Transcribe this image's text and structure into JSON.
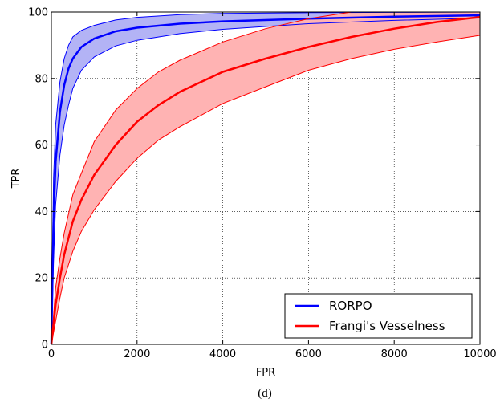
{
  "chart_data": {
    "type": "line",
    "xlabel": "FPR",
    "ylabel": "TPR",
    "xlim": [
      0,
      10000
    ],
    "ylim": [
      0,
      100
    ],
    "xticks": [
      "0",
      "2000",
      "4000",
      "6000",
      "8000",
      "10000"
    ],
    "yticks": [
      "0",
      "20",
      "40",
      "60",
      "80",
      "100"
    ],
    "grid": true,
    "legend_position": "bottom-right",
    "caption": "(d)",
    "series": [
      {
        "name": "RORPO",
        "color": "#0000ff",
        "band_color": "#b3b3f5",
        "x": [
          0,
          50,
          100,
          200,
          300,
          400,
          500,
          700,
          1000,
          1500,
          2000,
          3000,
          4000,
          6000,
          8000,
          10000
        ],
        "y": [
          0,
          38,
          55,
          70,
          78,
          83,
          86,
          89.5,
          92,
          94.2,
          95.3,
          96.5,
          97.2,
          98,
          98.6,
          99
        ],
        "lower": [
          0,
          25,
          42,
          57,
          66,
          72,
          77,
          82.5,
          86.5,
          89.8,
          91.5,
          93.5,
          94.8,
          96.5,
          97.5,
          98.2
        ],
        "upper": [
          0,
          50,
          66,
          79,
          86,
          90,
          92.5,
          94.5,
          96,
          97.6,
          98.4,
          99.2,
          99.6,
          99.8,
          99.9,
          100
        ]
      },
      {
        "name": "Frangi's Vesselness",
        "color": "#ff0000",
        "band_color": "#ffb3b3",
        "x": [
          0,
          100,
          200,
          300,
          500,
          700,
          1000,
          1500,
          2000,
          2500,
          3000,
          4000,
          5000,
          6000,
          7000,
          8000,
          9000,
          10000
        ],
        "y": [
          0,
          12,
          20,
          27,
          37,
          43.5,
          51,
          60,
          67,
          72,
          76,
          82,
          86,
          89.5,
          92.5,
          95,
          97,
          98.5
        ],
        "lower": [
          0,
          7,
          14,
          20,
          28,
          34,
          40.5,
          49,
          56,
          61.5,
          65.5,
          72.5,
          77.5,
          82.5,
          86,
          88.8,
          91,
          93
        ],
        "upper": [
          0,
          17,
          26,
          33.5,
          45,
          51.5,
          61,
          70.5,
          77,
          82,
          85.5,
          91,
          95,
          98,
          100,
          100,
          100,
          100
        ]
      }
    ]
  }
}
